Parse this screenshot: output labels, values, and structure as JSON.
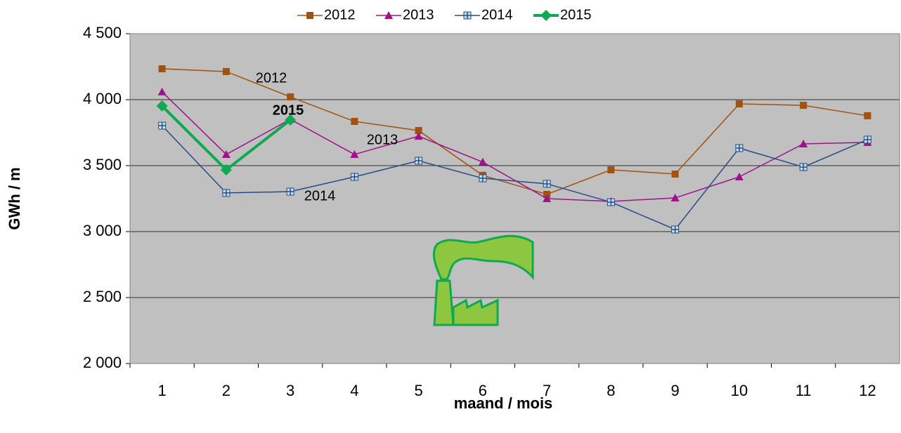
{
  "chart_data": {
    "type": "line",
    "x_label": "maand  /  mois",
    "y_label": "GWh / m",
    "categories": [
      "1",
      "2",
      "3",
      "4",
      "5",
      "6",
      "7",
      "8",
      "9",
      "10",
      "11",
      "12"
    ],
    "series": [
      {
        "name": "2012",
        "color": "#a0520e",
        "marker": "square",
        "width": 1.5,
        "values": [
          4234,
          4213,
          4021,
          3835,
          3766,
          3426,
          3282,
          3468,
          3436,
          3968,
          3957,
          3878
        ]
      },
      {
        "name": "2013",
        "color": "#a0108a",
        "marker": "triangle",
        "width": 1.5,
        "values": [
          4059,
          3585,
          3851,
          3585,
          3723,
          3527,
          3250,
          3229,
          3255,
          3415,
          3665,
          3676
        ]
      },
      {
        "name": "2014",
        "color": "#234d86",
        "marker": "cross",
        "width": 1.5,
        "values": [
          3803,
          3293,
          3303,
          3415,
          3537,
          3404,
          3362,
          3223,
          3016,
          3633,
          3489,
          3697
        ]
      },
      {
        "name": "2015",
        "color": "#10a850",
        "marker": "diamond",
        "width": 4,
        "values": [
          3952,
          3468,
          3846,
          null,
          null,
          null,
          null,
          null,
          null,
          null,
          null,
          null
        ]
      }
    ],
    "annotations": [
      {
        "text": "2012",
        "bold": false
      },
      {
        "text": "2015",
        "bold": true
      },
      {
        "text": "2013",
        "bold": false
      },
      {
        "text": "2014",
        "bold": false
      }
    ],
    "ylim": [
      2000,
      4500
    ],
    "yticks": [
      {
        "value": 2000,
        "label": "2 000"
      },
      {
        "value": 2500,
        "label": "2 500"
      },
      {
        "value": 3000,
        "label": "3 000"
      },
      {
        "value": 3500,
        "label": "3 500"
      },
      {
        "value": 4000,
        "label": "4 000"
      },
      {
        "value": 4500,
        "label": "4 500"
      }
    ],
    "grid": true,
    "legend": "top"
  }
}
